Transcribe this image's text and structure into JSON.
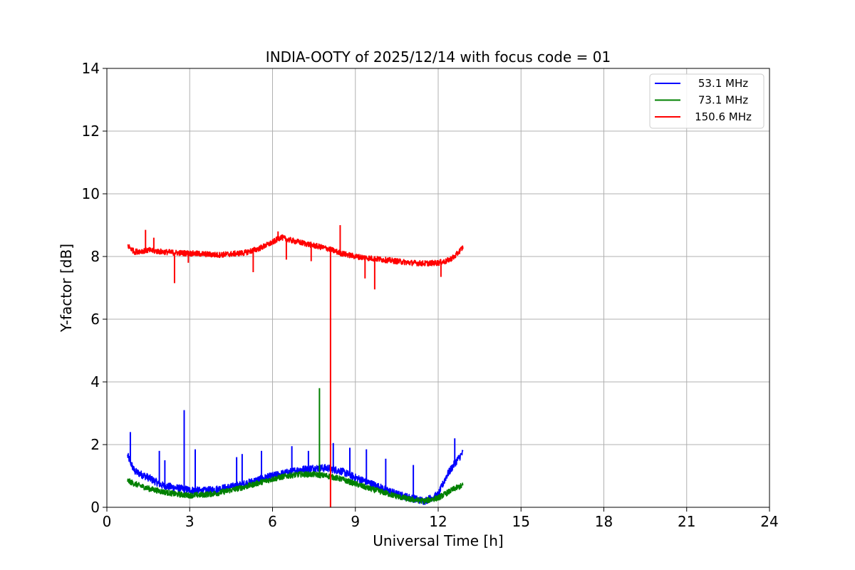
{
  "chart_data": {
    "type": "line",
    "title": "INDIA-OOTY of 2025/12/14 with focus code = 01",
    "xlabel": "Universal Time [h]",
    "ylabel": "Y-factor [dB]",
    "xlim": [
      0,
      24
    ],
    "ylim": [
      0,
      14
    ],
    "xticks": [
      0,
      3,
      6,
      9,
      12,
      15,
      18,
      21,
      24
    ],
    "yticks": [
      0,
      2,
      4,
      6,
      8,
      10,
      12,
      14
    ],
    "grid": true,
    "legend_position": "top-right",
    "series": [
      {
        "name": "53.1 MHz",
        "label": " 53.1 MHz",
        "color": "#0000ff",
        "x": [
          0.75,
          1.0,
          1.5,
          2.0,
          2.5,
          3.0,
          3.5,
          4.0,
          4.5,
          5.0,
          5.5,
          6.0,
          6.5,
          7.0,
          7.5,
          8.0,
          8.5,
          9.0,
          9.5,
          10.0,
          10.5,
          11.0,
          11.5,
          12.0,
          12.3,
          12.6,
          12.9
        ],
        "values": [
          1.65,
          1.15,
          0.95,
          0.7,
          0.62,
          0.55,
          0.52,
          0.58,
          0.65,
          0.75,
          0.88,
          1.0,
          1.1,
          1.2,
          1.25,
          1.25,
          1.15,
          0.95,
          0.78,
          0.6,
          0.42,
          0.3,
          0.2,
          0.4,
          1.0,
          1.4,
          1.75
        ],
        "spikes": [
          [
            0.85,
            2.4
          ],
          [
            2.8,
            3.1
          ],
          [
            3.2,
            1.85
          ],
          [
            1.9,
            1.8
          ],
          [
            2.1,
            1.5
          ],
          [
            4.7,
            1.6
          ],
          [
            4.9,
            1.7
          ],
          [
            5.6,
            1.8
          ],
          [
            6.7,
            1.95
          ],
          [
            7.3,
            1.8
          ],
          [
            8.2,
            2.05
          ],
          [
            8.8,
            1.9
          ],
          [
            9.4,
            1.85
          ],
          [
            10.1,
            1.55
          ],
          [
            11.1,
            1.35
          ],
          [
            12.6,
            2.2
          ]
        ]
      },
      {
        "name": "73.1 MHz",
        "label": " 73.1 MHz",
        "color": "#008000",
        "x": [
          0.75,
          1.0,
          1.5,
          2.0,
          2.5,
          3.0,
          3.5,
          4.0,
          4.5,
          5.0,
          5.5,
          6.0,
          6.5,
          7.0,
          7.5,
          8.0,
          8.5,
          9.0,
          9.5,
          10.0,
          10.5,
          11.0,
          11.5,
          12.0,
          12.3,
          12.6,
          12.9
        ],
        "values": [
          0.85,
          0.75,
          0.6,
          0.5,
          0.42,
          0.38,
          0.4,
          0.45,
          0.55,
          0.65,
          0.78,
          0.9,
          1.0,
          1.05,
          1.05,
          1.0,
          0.9,
          0.75,
          0.6,
          0.48,
          0.35,
          0.25,
          0.2,
          0.3,
          0.45,
          0.6,
          0.7
        ],
        "spikes": [
          [
            7.7,
            3.8
          ]
        ]
      },
      {
        "name": "150.6 MHz",
        "label": "150.6 MHz",
        "color": "#ff0000",
        "x": [
          0.75,
          1.0,
          1.5,
          2.0,
          2.5,
          3.0,
          3.5,
          4.0,
          4.5,
          5.0,
          5.5,
          6.0,
          6.3,
          6.5,
          7.0,
          7.5,
          8.0,
          8.5,
          9.0,
          9.5,
          10.0,
          10.5,
          11.0,
          11.5,
          12.0,
          12.3,
          12.6,
          12.9
        ],
        "values": [
          8.35,
          8.15,
          8.2,
          8.15,
          8.12,
          8.1,
          8.08,
          8.05,
          8.08,
          8.12,
          8.25,
          8.45,
          8.62,
          8.55,
          8.45,
          8.35,
          8.25,
          8.1,
          8.0,
          7.95,
          7.9,
          7.85,
          7.8,
          7.78,
          7.8,
          7.85,
          8.0,
          8.3
        ],
        "spikes": [
          [
            1.4,
            8.85
          ],
          [
            1.7,
            8.6
          ],
          [
            8.45,
            9.0
          ],
          [
            6.2,
            8.8
          ]
        ],
        "dips": [
          [
            2.45,
            7.15
          ],
          [
            2.95,
            7.8
          ],
          [
            5.3,
            7.5
          ],
          [
            6.5,
            7.9
          ],
          [
            7.4,
            7.85
          ],
          [
            8.1,
            0.0
          ],
          [
            9.35,
            7.3
          ],
          [
            9.7,
            6.95
          ],
          [
            12.1,
            7.35
          ]
        ]
      }
    ]
  }
}
